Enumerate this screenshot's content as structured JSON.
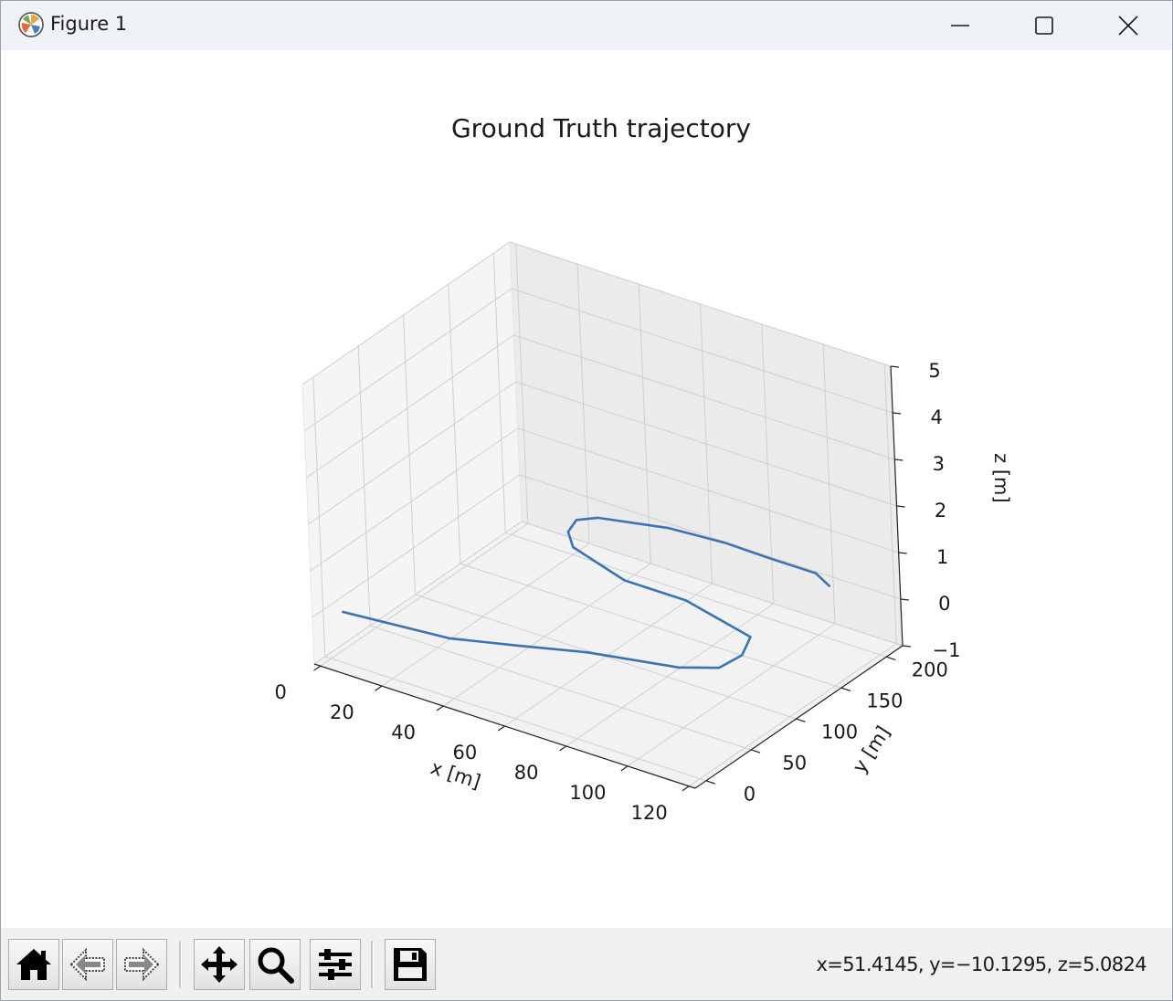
{
  "window": {
    "title": "Figure 1",
    "app_icon": "matplotlib-icon",
    "controls": {
      "minimize_icon": "minimize-icon",
      "maximize_icon": "maximize-icon",
      "close_icon": "close-icon"
    }
  },
  "toolbar": {
    "buttons": [
      {
        "name": "home",
        "icon": "home-icon"
      },
      {
        "name": "back",
        "icon": "arrow-left-icon"
      },
      {
        "name": "forward",
        "icon": "arrow-right-icon"
      },
      {
        "name": "pan",
        "icon": "move-icon"
      },
      {
        "name": "zoom",
        "icon": "magnifier-icon"
      },
      {
        "name": "configure-subplots",
        "icon": "sliders-icon"
      },
      {
        "name": "save",
        "icon": "floppy-disk-icon"
      }
    ],
    "coordinates_text": "x=51.4145, y=−10.1295, z=5.0824"
  },
  "chart_data": {
    "type": "line",
    "projection": "3d",
    "title": "Ground Truth trajectory",
    "xlabel": "x [m]",
    "ylabel": "y [m]",
    "zlabel": "z [m]",
    "xlim": [
      -2,
      122
    ],
    "ylim": [
      -12,
      218
    ],
    "zlim": [
      -1,
      5
    ],
    "xticks": [
      "0",
      "20",
      "40",
      "60",
      "80",
      "100",
      "120"
    ],
    "yticks": [
      "0",
      "50",
      "100",
      "150",
      "200"
    ],
    "zticks": [
      "−1",
      "0",
      "1",
      "2",
      "3",
      "4",
      "5"
    ],
    "grid": true,
    "series": [
      {
        "color": "#3a74b2",
        "x": [
          3,
          35,
          52,
          70,
          95,
          104,
          105,
          101,
          75,
          55,
          33,
          27,
          25,
          29,
          48,
          65,
          80,
          95,
          102
        ],
        "y": [
          5,
          14,
          30,
          48,
          64,
          78,
          100,
          123,
          140,
          140,
          158,
          173,
          189,
          199,
          213,
          217,
          216,
          216,
          207
        ],
        "z": [
          0,
          0,
          0,
          0,
          0,
          0,
          0,
          0,
          0,
          0,
          0,
          0,
          0,
          0,
          0,
          0,
          0,
          0,
          0
        ]
      }
    ]
  }
}
